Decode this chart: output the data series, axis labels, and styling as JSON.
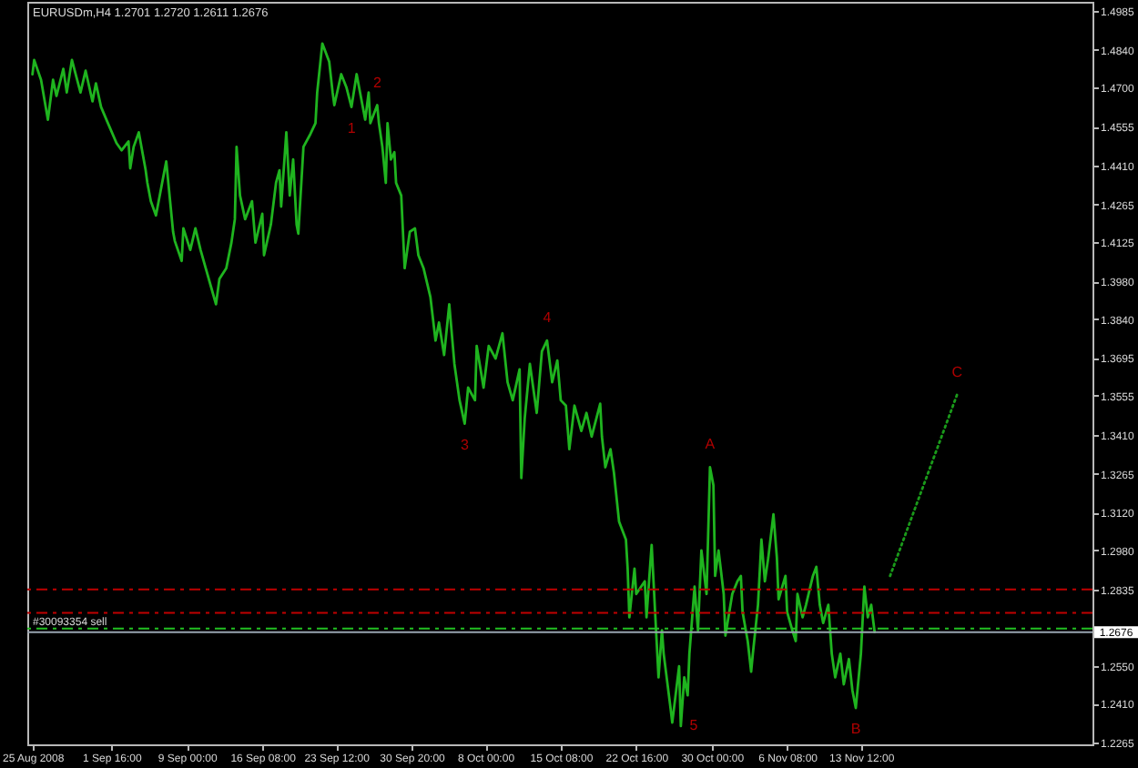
{
  "chart_data": {
    "type": "line",
    "title": "EURUSDm,H4 1.2701 1.2720 1.2611 1.2676",
    "xlim": [
      "2008-08-24T12:00",
      "2008-12-06T00:00"
    ],
    "xticks": [
      {
        "value": "2008-08-25T00:00",
        "label": "25 Aug 2008"
      },
      {
        "value": "2008-09-01T16:00",
        "label": "1 Sep 16:00"
      },
      {
        "value": "2008-09-09T00:00",
        "label": "9 Sep 00:00"
      },
      {
        "value": "2008-09-16T08:00",
        "label": "16 Sep 08:00"
      },
      {
        "value": "2008-09-23T12:00",
        "label": "23 Sep 12:00"
      },
      {
        "value": "2008-09-30T20:00",
        "label": "30 Sep 20:00"
      },
      {
        "value": "2008-10-08T00:00",
        "label": "8 Oct 00:00"
      },
      {
        "value": "2008-10-15T08:00",
        "label": "15 Oct 08:00"
      },
      {
        "value": "2008-10-22T16:00",
        "label": "22 Oct 16:00"
      },
      {
        "value": "2008-10-30T00:00",
        "label": "30 Oct 00:00"
      },
      {
        "value": "2008-11-06T08:00",
        "label": "6 Nov 08:00"
      },
      {
        "value": "2008-11-13T12:00",
        "label": "13 Nov 12:00"
      }
    ],
    "ylim": [
      1.2259,
      1.5019
    ],
    "yticks": [
      1.4985,
      {
        "value": 1.484,
        "label": "1.4840"
      },
      {
        "value": 1.47,
        "label": "1.4700"
      },
      1.4555,
      {
        "value": 1.441,
        "label": "1.4410"
      },
      1.4265,
      1.4125,
      {
        "value": 1.398,
        "label": "1.3980"
      },
      {
        "value": 1.384,
        "label": "1.3840"
      },
      1.3695,
      1.3555,
      {
        "value": 1.341,
        "label": "1.3410"
      },
      1.3265,
      {
        "value": 1.312,
        "label": "1.3120"
      },
      {
        "value": 1.298,
        "label": "1.2980"
      },
      1.2835,
      {
        "value": 1.255,
        "label": "1.2550"
      },
      {
        "value": 1.241,
        "label": "1.2410"
      },
      1.2265
    ],
    "series": [
      {
        "color": "#1fb41f",
        "x": [
          "2008-08-25T00:00",
          "2008-08-25T04:00",
          "2008-08-25T20:00",
          "2008-08-26T12:00",
          "2008-08-27T00:00",
          "2008-08-27T08:00",
          "2008-08-28T00:00",
          "2008-08-28T08:00",
          "2008-08-28T20:00",
          "2008-08-29T16:00",
          "2008-08-30T04:00",
          "2008-08-30T20:00",
          "2008-08-31T04:00",
          "2008-08-31T16:00",
          "2008-09-01T08:00",
          "2008-09-02T04:00",
          "2008-09-02T16:00",
          "2008-09-03T08:00",
          "2008-09-03T12:00",
          "2008-09-03T20:00",
          "2008-09-04T08:00",
          "2008-09-05T00:00",
          "2008-09-05T04:00",
          "2008-09-05T12:00",
          "2008-09-06T00:00",
          "2008-09-06T12:00",
          "2008-09-07T00:00",
          "2008-09-07T16:00",
          "2008-09-07T20:00",
          "2008-09-08T12:00",
          "2008-09-08T16:00",
          "2008-09-09T08:00",
          "2008-09-09T20:00",
          "2008-09-10T08:00",
          "2008-09-10T20:00",
          "2008-09-11T08:00",
          "2008-09-11T20:00",
          "2008-09-12T04:00",
          "2008-09-12T20:00",
          "2008-09-13T08:00",
          "2008-09-13T16:00",
          "2008-09-13T20:00",
          "2008-09-14T04:00",
          "2008-09-14T16:00",
          "2008-09-15T08:00",
          "2008-09-15T16:00",
          "2008-09-16T08:00",
          "2008-09-16T12:00",
          "2008-09-17T04:00",
          "2008-09-17T16:00",
          "2008-09-18T00:00",
          "2008-09-18T04:00",
          "2008-09-18T16:00",
          "2008-09-19T00:00",
          "2008-09-19T08:00",
          "2008-09-19T16:00",
          "2008-09-19T20:00",
          "2008-09-20T08:00",
          "2008-09-21T00:00",
          "2008-09-21T12:00",
          "2008-09-21T16:00",
          "2008-09-22T04:00",
          "2008-09-22T20:00",
          "2008-09-23T04:00",
          "2008-09-23T08:00",
          "2008-09-24T00:00",
          "2008-09-24T12:00",
          "2008-09-25T00:00",
          "2008-09-25T12:00",
          "2008-09-25T20:00",
          "2008-09-26T08:00",
          "2008-09-26T16:00",
          "2008-09-26T20:00",
          "2008-09-27T12:00",
          "2008-09-27T16:00",
          "2008-09-28T00:00",
          "2008-09-28T08:00",
          "2008-09-28T12:00",
          "2008-09-28T20:00",
          "2008-09-29T04:00",
          "2008-09-29T08:00",
          "2008-09-29T20:00",
          "2008-09-30T04:00",
          "2008-09-30T16:00",
          "2008-10-01T04:00",
          "2008-10-01T12:00",
          "2008-10-02T00:00",
          "2008-10-02T16:00",
          "2008-10-03T04:00",
          "2008-10-03T12:00",
          "2008-10-04T00:00",
          "2008-10-04T12:00",
          "2008-10-05T00:00",
          "2008-10-05T12:00",
          "2008-10-06T00:00",
          "2008-10-06T08:00",
          "2008-10-07T00:00",
          "2008-10-07T04:00",
          "2008-10-07T20:00",
          "2008-10-08T08:00",
          "2008-10-09T00:00",
          "2008-10-09T16:00",
          "2008-10-10T04:00",
          "2008-10-10T16:00",
          "2008-10-11T08:00",
          "2008-10-11T12:00",
          "2008-10-11T20:00",
          "2008-10-12T08:00",
          "2008-10-13T00:00",
          "2008-10-13T12:00",
          "2008-10-14T00:00",
          "2008-10-14T12:00",
          "2008-10-15T00:00",
          "2008-10-15T08:00",
          "2008-10-15T20:00",
          "2008-10-16T04:00",
          "2008-10-16T16:00",
          "2008-10-17T08:00",
          "2008-10-17T20:00",
          "2008-10-18T08:00",
          "2008-10-19T04:00",
          "2008-10-19T08:00",
          "2008-10-19T16:00",
          "2008-10-20T04:00",
          "2008-10-20T12:00",
          "2008-10-21T00:00",
          "2008-10-21T16:00",
          "2008-10-21T20:00",
          "2008-10-22T00:00",
          "2008-10-22T12:00",
          "2008-10-22T16:00",
          "2008-10-23T12:00",
          "2008-10-23T16:00",
          "2008-10-24T00:00",
          "2008-10-24T04:00",
          "2008-10-24T12:00",
          "2008-10-24T20:00",
          "2008-10-25T04:00",
          "2008-10-25T08:00",
          "2008-10-26T00:00",
          "2008-10-26T04:00",
          "2008-10-26T20:00",
          "2008-10-27T00:00",
          "2008-10-27T08:00",
          "2008-10-27T16:00",
          "2008-10-27T20:00",
          "2008-10-28T08:00",
          "2008-10-28T16:00",
          "2008-10-29T00:00",
          "2008-10-29T12:00",
          "2008-10-29T20:00",
          "2008-10-30T04:00",
          "2008-10-30T08:00",
          "2008-10-30T16:00",
          "2008-10-31T04:00",
          "2008-10-31T08:00",
          "2008-11-01T00:00",
          "2008-11-01T12:00",
          "2008-11-01T20:00",
          "2008-11-02T00:00",
          "2008-11-02T12:00",
          "2008-11-02T20:00",
          "2008-11-03T00:00",
          "2008-11-03T12:00",
          "2008-11-03T20:00",
          "2008-11-04T04:00",
          "2008-11-04T12:00",
          "2008-11-05T00:00",
          "2008-11-05T08:00",
          "2008-11-05T12:00",
          "2008-11-06T04:00",
          "2008-11-06T08:00",
          "2008-11-06T20:00",
          "2008-11-07T04:00",
          "2008-11-07T08:00",
          "2008-11-07T20:00",
          "2008-11-08T04:00",
          "2008-11-08T20:00",
          "2008-11-09T04:00",
          "2008-11-09T12:00",
          "2008-11-09T20:00",
          "2008-11-10T08:00",
          "2008-11-10T16:00",
          "2008-11-11T00:00",
          "2008-11-11T12:00",
          "2008-11-11T20:00",
          "2008-11-12T08:00",
          "2008-11-12T16:00",
          "2008-11-13T00:00",
          "2008-11-13T04:00",
          "2008-11-13T12:00",
          "2008-11-13T20:00",
          "2008-11-14T04:00",
          "2008-11-14T12:00",
          "2008-11-14T20:00"
        ],
        "values": [
          1.475,
          1.4803,
          1.4729,
          1.4581,
          1.4729,
          1.4669,
          1.477,
          1.4682,
          1.4803,
          1.4682,
          1.4763,
          1.4649,
          1.4716,
          1.4628,
          1.4568,
          1.4494,
          1.4467,
          1.45,
          1.44,
          1.448,
          1.4534,
          1.4393,
          1.4346,
          1.4278,
          1.4225,
          1.4326,
          1.4426,
          1.4164,
          1.413,
          1.4056,
          1.4177,
          1.4097,
          1.4177,
          1.4097,
          1.4029,
          1.3962,
          1.3895,
          1.3989,
          1.4029,
          1.4124,
          1.4211,
          1.448,
          1.4299,
          1.4211,
          1.4278,
          1.4124,
          1.4231,
          1.4077,
          1.4191,
          1.4346,
          1.4393,
          1.4258,
          1.4534,
          1.4299,
          1.4433,
          1.4191,
          1.4157,
          1.448,
          1.4527,
          1.4568,
          1.4682,
          1.4864,
          1.4797,
          1.4682,
          1.4635,
          1.475,
          1.4702,
          1.4628,
          1.475,
          1.4682,
          1.4581,
          1.4682,
          1.4568,
          1.4635,
          1.4568,
          1.448,
          1.4346,
          1.4568,
          1.4433,
          1.446,
          1.4346,
          1.4299,
          1.4029,
          1.4164,
          1.4177,
          1.4077,
          1.4029,
          1.3922,
          1.376,
          1.3827,
          1.3706,
          1.3895,
          1.3673,
          1.3538,
          1.3451,
          1.3585,
          1.3538,
          1.374,
          1.3585,
          1.374,
          1.3693,
          1.3787,
          1.3605,
          1.3538,
          1.3653,
          1.3249,
          1.3471,
          1.3673,
          1.3491,
          1.372,
          1.376,
          1.3605,
          1.3686,
          1.3538,
          1.3518,
          1.3356,
          1.3518,
          1.3424,
          1.3491,
          1.3403,
          1.3525,
          1.3403,
          1.3289,
          1.3356,
          1.3269,
          1.3087,
          1.302,
          1.2912,
          1.2731,
          1.2912,
          1.2818,
          1.2865,
          1.2731,
          1.2912,
          1.3,
          1.2751,
          1.2508,
          1.2683,
          1.2596,
          1.2394,
          1.234,
          1.2549,
          1.2327,
          1.2508,
          1.2441,
          1.2596,
          1.2845,
          1.2683,
          1.298,
          1.2818,
          1.3289,
          1.3222,
          1.2885,
          1.298,
          1.2818,
          1.2663,
          1.2818,
          1.2865,
          1.2885,
          1.2751,
          1.2643,
          1.2529,
          1.2596,
          1.2778,
          1.302,
          1.2865,
          1.2953,
          1.3114,
          1.2953,
          1.2798,
          1.2885,
          1.2751,
          1.2683,
          1.2643,
          1.2818,
          1.2731,
          1.2778,
          1.2885,
          1.2919,
          1.2778,
          1.271,
          1.2778,
          1.2596,
          1.2508,
          1.2596,
          1.2482,
          1.2576,
          1.2461,
          1.2394,
          1.2461,
          1.2596,
          1.2845,
          1.2731,
          1.2778,
          1.2676
        ]
      },
      {
        "color": "#1a9a1a",
        "line_style": "dotted",
        "x": [
          "2008-11-16T08:00",
          "2008-11-22T20:00"
        ],
        "values": [
          1.2885,
          1.3558
        ]
      }
    ],
    "ref_lines": [
      {
        "axis": "y",
        "value": 1.2835,
        "color": "#c00000",
        "line_style": "dashed"
      },
      {
        "axis": "y",
        "value": 1.2748,
        "color": "#c00000",
        "line_style": "dashed"
      },
      {
        "axis": "y",
        "value": 1.2689,
        "color": "#22c022",
        "line_style": "dashed",
        "label": "#30093354 sell"
      },
      {
        "axis": "y",
        "value": 1.2676,
        "color": "#98a4b0",
        "line_style": "solid",
        "label": "1.2676"
      }
    ],
    "annotations": [
      {
        "text": "1",
        "x": "2008-09-25T00:00",
        "y": 1.4628
      },
      {
        "text": "2",
        "x": "2008-09-27T12:00",
        "y": 1.4635
      },
      {
        "text": "3",
        "x": "2008-10-06T00:00",
        "y": 1.3451
      },
      {
        "text": "4",
        "x": "2008-10-14T00:00",
        "y": 1.376
      },
      {
        "text": "5",
        "x": "2008-10-27T00:00",
        "y": 1.2327
      },
      {
        "text": "A",
        "x": "2008-10-29T20:00",
        "y": 1.3289
      },
      {
        "text": "B",
        "x": "2008-11-13T00:00",
        "y": 1.2394
      },
      {
        "text": "C",
        "x": "2008-11-22T20:00",
        "y": 1.3558
      }
    ]
  }
}
